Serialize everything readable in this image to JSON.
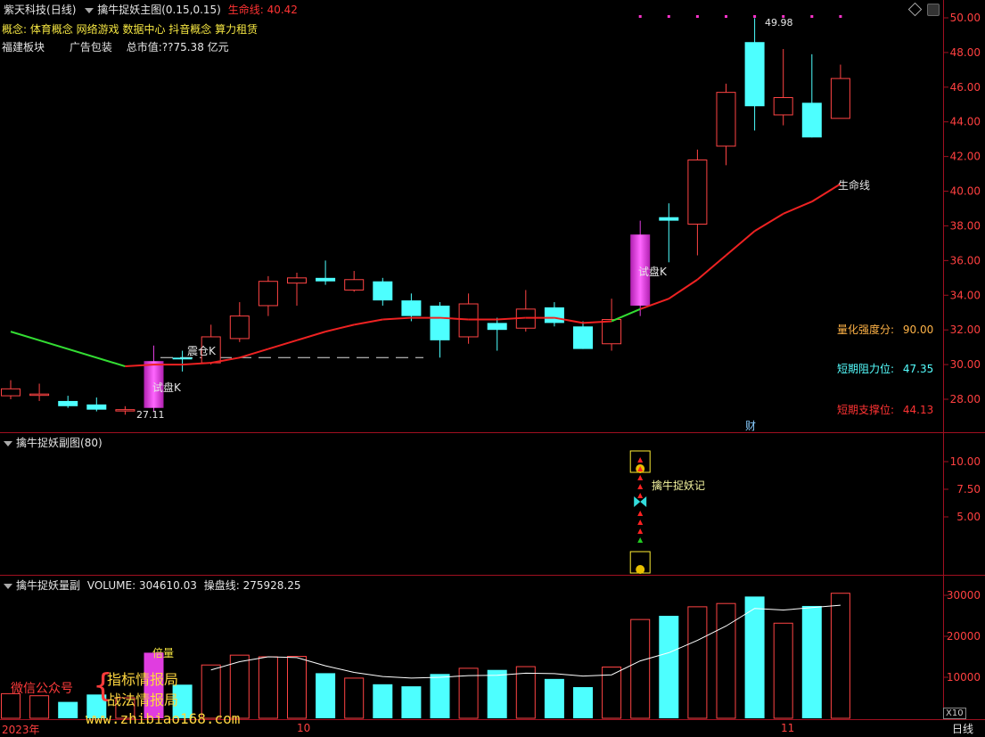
{
  "main_panel": {
    "stock_name": "紫天科技",
    "period": "(日线)",
    "indicator_name": "擒牛捉妖主图",
    "indicator_params": "(0.15,0.15)",
    "life_line_label": "生命线:",
    "life_line_value": "40.42",
    "concepts": "概念: 体育概念 网络游戏 数据中心 抖音概念 算力租赁",
    "sector": "福建板块",
    "business": "广告包装",
    "market_cap": "总市值:??75.38 亿元",
    "high_label": "49.98",
    "low_label": "27.11",
    "life_line_tag": "生命线",
    "shipan_label_1": "试盘K",
    "shipan_label_2": "试盘K",
    "zhencang_label": "震仓K",
    "cai_label": "财",
    "quant_strength_label": "量化强度分:",
    "quant_strength_value": "90.00",
    "resistance_label": "短期阻力位:",
    "resistance_value": "47.35",
    "support_label": "短期支撑位:",
    "support_value": "44.13",
    "y_ticks": [
      "50.00",
      "48.00",
      "46.00",
      "44.00",
      "42.00",
      "40.00",
      "38.00",
      "36.00",
      "34.00",
      "32.00",
      "30.00",
      "28.00"
    ]
  },
  "sub_panel": {
    "title": "擒牛捉妖副图",
    "param": "(80)",
    "signal_label": "擒牛捉妖记",
    "y_ticks": [
      "10.00",
      "7.50",
      "5.00"
    ]
  },
  "volume_panel": {
    "title": "擒牛捉妖量副",
    "volume_label": "VOLUME:",
    "volume_value": "304610.03",
    "line_label": "操盘线:",
    "line_value": "275928.25",
    "bei_liang_label": "倍量",
    "y_ticks": [
      "30000",
      "20000",
      "10000"
    ],
    "unit": "X10"
  },
  "watermark": {
    "wechat": "微信公众号",
    "brand_1": "指标情报局",
    "brand_2": "战法情报局",
    "url": "www.zhibiao168.com"
  },
  "x_axis": {
    "labels": [
      "2023年",
      "10",
      "11"
    ],
    "period_btn": "日线"
  },
  "chart_data": {
    "type": "candlestick",
    "candles": [
      {
        "o": 28.2,
        "h": 29.1,
        "l": 28.0,
        "c": 28.6
      },
      {
        "o": 28.3,
        "h": 28.9,
        "l": 27.9,
        "c": 28.3
      },
      {
        "o": 27.9,
        "h": 28.2,
        "l": 27.5,
        "c": 27.6
      },
      {
        "o": 27.7,
        "h": 28.1,
        "l": 27.3,
        "c": 27.4
      },
      {
        "o": 27.4,
        "h": 27.6,
        "l": 27.11,
        "c": 27.4
      },
      {
        "o": 27.5,
        "h": 31.1,
        "l": 27.3,
        "c": 30.2
      },
      {
        "o": 30.4,
        "h": 30.8,
        "l": 29.6,
        "c": 30.3
      },
      {
        "o": 30.1,
        "h": 32.3,
        "l": 30.0,
        "c": 31.6
      },
      {
        "o": 31.5,
        "h": 33.6,
        "l": 31.3,
        "c": 32.8
      },
      {
        "o": 33.4,
        "h": 35.1,
        "l": 32.8,
        "c": 34.8
      },
      {
        "o": 34.7,
        "h": 35.3,
        "l": 33.4,
        "c": 35.0
      },
      {
        "o": 35.0,
        "h": 36.0,
        "l": 34.6,
        "c": 34.8
      },
      {
        "o": 34.3,
        "h": 35.4,
        "l": 34.2,
        "c": 34.9
      },
      {
        "o": 34.8,
        "h": 35.0,
        "l": 33.4,
        "c": 33.7
      },
      {
        "o": 33.7,
        "h": 34.1,
        "l": 32.5,
        "c": 32.8
      },
      {
        "o": 33.4,
        "h": 33.6,
        "l": 30.4,
        "c": 31.4
      },
      {
        "o": 31.6,
        "h": 34.1,
        "l": 31.2,
        "c": 33.5
      },
      {
        "o": 32.4,
        "h": 32.7,
        "l": 30.8,
        "c": 32.0
      },
      {
        "o": 32.1,
        "h": 34.3,
        "l": 31.9,
        "c": 33.2
      },
      {
        "o": 33.3,
        "h": 33.6,
        "l": 32.2,
        "c": 32.4
      },
      {
        "o": 32.2,
        "h": 32.5,
        "l": 30.9,
        "c": 30.9
      },
      {
        "o": 31.2,
        "h": 33.8,
        "l": 30.8,
        "c": 32.6
      },
      {
        "o": 33.4,
        "h": 38.3,
        "l": 32.8,
        "c": 37.5
      },
      {
        "o": 38.5,
        "h": 39.3,
        "l": 35.9,
        "c": 38.3
      },
      {
        "o": 38.1,
        "h": 42.4,
        "l": 36.3,
        "c": 41.8
      },
      {
        "o": 42.6,
        "h": 46.2,
        "l": 41.5,
        "c": 45.7
      },
      {
        "o": 48.6,
        "h": 49.98,
        "l": 43.5,
        "c": 44.9
      },
      {
        "o": 44.4,
        "h": 48.2,
        "l": 43.8,
        "c": 45.4
      },
      {
        "o": 45.1,
        "h": 47.9,
        "l": 43.1,
        "c": 43.1
      },
      {
        "o": 44.2,
        "h": 47.3,
        "l": 44.2,
        "c": 46.5
      }
    ],
    "life_line": [
      31.9,
      null,
      null,
      null,
      29.9,
      30.0,
      30.0,
      30.1,
      30.4,
      30.9,
      31.4,
      31.9,
      32.3,
      32.6,
      32.7,
      32.7,
      32.6,
      32.6,
      32.7,
      32.7,
      32.4,
      32.5,
      33.2,
      33.8,
      34.9,
      36.3,
      37.7,
      38.7,
      39.4,
      40.42
    ],
    "volume": [
      6000,
      5500,
      4000,
      5800,
      5000,
      16000,
      8200,
      13000,
      15400,
      15000,
      15100,
      11000,
      9800,
      8300,
      7800,
      10800,
      12200,
      11800,
      12600,
      9600,
      7600,
      12500,
      24100,
      25000,
      27200,
      28000,
      29700,
      23200,
      27400,
      30500
    ],
    "volume_line": [
      null,
      null,
      null,
      null,
      null,
      null,
      null,
      11800,
      13800,
      15000,
      14800,
      12800,
      11200,
      10200,
      9800,
      10000,
      10400,
      10500,
      11000,
      10900,
      10300,
      10600,
      14000,
      16000,
      19000,
      22500,
      26800,
      26400,
      27000,
      27592
    ]
  }
}
